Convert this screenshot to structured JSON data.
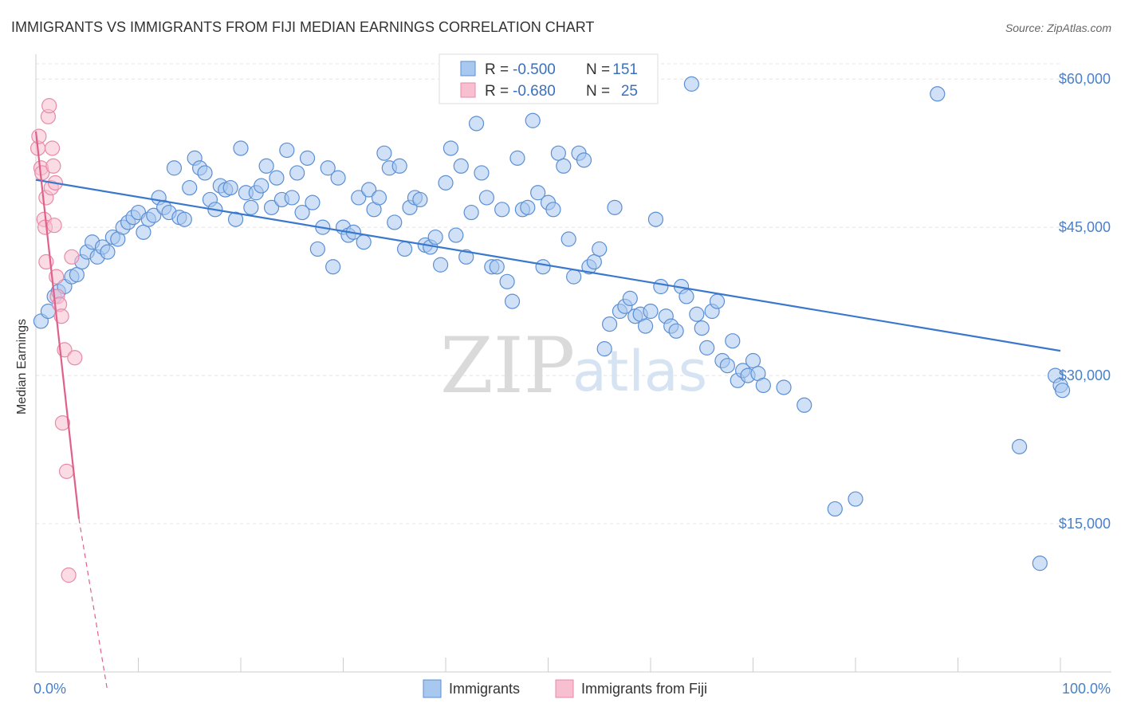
{
  "chart_data": {
    "type": "scatter",
    "title": "IMMIGRANTS VS IMMIGRANTS FROM FIJI MEDIAN EARNINGS CORRELATION CHART",
    "source": "Source: ZipAtlas.com",
    "watermark": {
      "zip": "ZIP",
      "atlas": "atlas"
    },
    "ylabel": "Median Earnings",
    "xlim": [
      0,
      100
    ],
    "ylim": [
      0,
      63000
    ],
    "x_tick_labels": [
      "0.0%",
      "100.0%"
    ],
    "y_ticks": [
      {
        "value": 15000,
        "label": "$15,000"
      },
      {
        "value": 30000,
        "label": "$30,000"
      },
      {
        "value": 45000,
        "label": "$45,000"
      },
      {
        "value": 60000,
        "label": "$60,000"
      }
    ],
    "grid": true,
    "legend": {
      "placement": "top-center",
      "rows": [
        {
          "r_label": "R =",
          "r_value": "-0.500",
          "n_label": "N =",
          "n_value": "151",
          "color": "#a9c8f0",
          "stroke": "#5b8fd4"
        },
        {
          "r_label": "R =",
          "r_value": "-0.680",
          "n_label": "N =",
          "n_value": "25",
          "color": "#f7bfd0",
          "stroke": "#e88aa8"
        }
      ]
    },
    "series": [
      {
        "name": "Immigrants",
        "color": "#a9c8f0",
        "stroke": "#5b8fd4",
        "line_color": "#3a78cc",
        "trend": {
          "x0": 0,
          "y0": 49800,
          "x1": 100,
          "y1": 32500
        },
        "points": [
          [
            0.5,
            35500
          ],
          [
            1.2,
            36500
          ],
          [
            1.8,
            38000
          ],
          [
            2.2,
            38500
          ],
          [
            2.8,
            39000
          ],
          [
            3.5,
            40000
          ],
          [
            4,
            40200
          ],
          [
            4.5,
            41500
          ],
          [
            5,
            42500
          ],
          [
            5.5,
            43500
          ],
          [
            6,
            42000
          ],
          [
            6.5,
            43000
          ],
          [
            7,
            42500
          ],
          [
            7.5,
            44000
          ],
          [
            8,
            43800
          ],
          [
            8.5,
            45000
          ],
          [
            9,
            45500
          ],
          [
            9.5,
            46000
          ],
          [
            10,
            46500
          ],
          [
            10.5,
            44500
          ],
          [
            11,
            45800
          ],
          [
            11.5,
            46200
          ],
          [
            12,
            48000
          ],
          [
            12.5,
            47000
          ],
          [
            13,
            46500
          ],
          [
            13.5,
            51000
          ],
          [
            14,
            46000
          ],
          [
            14.5,
            45800
          ],
          [
            15,
            49000
          ],
          [
            15.5,
            52000
          ],
          [
            16,
            51000
          ],
          [
            16.5,
            50500
          ],
          [
            17,
            47800
          ],
          [
            17.5,
            46800
          ],
          [
            18,
            49200
          ],
          [
            18.5,
            48800
          ],
          [
            19,
            49000
          ],
          [
            19.5,
            45800
          ],
          [
            20,
            53000
          ],
          [
            20.5,
            48500
          ],
          [
            21,
            47000
          ],
          [
            21.5,
            48500
          ],
          [
            22,
            49200
          ],
          [
            22.5,
            51200
          ],
          [
            23,
            47000
          ],
          [
            23.5,
            50000
          ],
          [
            24,
            47800
          ],
          [
            24.5,
            52800
          ],
          [
            25,
            48000
          ],
          [
            25.5,
            50500
          ],
          [
            26,
            46500
          ],
          [
            26.5,
            52000
          ],
          [
            27,
            47500
          ],
          [
            27.5,
            42800
          ],
          [
            28,
            45000
          ],
          [
            28.5,
            51000
          ],
          [
            29,
            41000
          ],
          [
            29.5,
            50000
          ],
          [
            30,
            45000
          ],
          [
            30.5,
            44200
          ],
          [
            31,
            44500
          ],
          [
            31.5,
            48000
          ],
          [
            32,
            43500
          ],
          [
            32.5,
            48800
          ],
          [
            33,
            46800
          ],
          [
            33.5,
            48000
          ],
          [
            34,
            52500
          ],
          [
            34.5,
            51000
          ],
          [
            35,
            45500
          ],
          [
            35.5,
            51200
          ],
          [
            36,
            42800
          ],
          [
            36.5,
            47000
          ],
          [
            37,
            48000
          ],
          [
            37.5,
            47800
          ],
          [
            38,
            43200
          ],
          [
            38.5,
            43000
          ],
          [
            39,
            44000
          ],
          [
            39.5,
            41200
          ],
          [
            40,
            49500
          ],
          [
            40.5,
            53000
          ],
          [
            41,
            44200
          ],
          [
            41.5,
            51200
          ],
          [
            42,
            42000
          ],
          [
            42.5,
            46500
          ],
          [
            43,
            55500
          ],
          [
            43.5,
            50500
          ],
          [
            44,
            48000
          ],
          [
            44.5,
            41000
          ],
          [
            45,
            41000
          ],
          [
            45.5,
            46800
          ],
          [
            46,
            39500
          ],
          [
            46.5,
            37500
          ],
          [
            47,
            52000
          ],
          [
            47.5,
            46800
          ],
          [
            48,
            47000
          ],
          [
            48.5,
            55800
          ],
          [
            49,
            48500
          ],
          [
            49.5,
            41000
          ],
          [
            50,
            47500
          ],
          [
            50.5,
            46800
          ],
          [
            51,
            52500
          ],
          [
            51.5,
            51200
          ],
          [
            52,
            43800
          ],
          [
            52.5,
            40000
          ],
          [
            53,
            52500
          ],
          [
            53.5,
            51800
          ],
          [
            54,
            41000
          ],
          [
            54.5,
            41500
          ],
          [
            55,
            42800
          ],
          [
            55.5,
            32700
          ],
          [
            56,
            35200
          ],
          [
            56.5,
            47000
          ],
          [
            57,
            36500
          ],
          [
            57.5,
            37000
          ],
          [
            58,
            37800
          ],
          [
            58.5,
            36000
          ],
          [
            59,
            36200
          ],
          [
            59.5,
            35000
          ],
          [
            60,
            36500
          ],
          [
            60.5,
            45800
          ],
          [
            61,
            39000
          ],
          [
            61.5,
            36000
          ],
          [
            62,
            35000
          ],
          [
            62.5,
            34500
          ],
          [
            63,
            39000
          ],
          [
            63.5,
            38000
          ],
          [
            64,
            59500
          ],
          [
            64.5,
            36200
          ],
          [
            65,
            34800
          ],
          [
            65.5,
            32800
          ],
          [
            66,
            36500
          ],
          [
            66.5,
            37500
          ],
          [
            67,
            31500
          ],
          [
            67.5,
            31000
          ],
          [
            68,
            33500
          ],
          [
            68.5,
            29500
          ],
          [
            69,
            30500
          ],
          [
            69.5,
            30000
          ],
          [
            70,
            31500
          ],
          [
            70.5,
            30200
          ],
          [
            71,
            29000
          ],
          [
            73,
            28800
          ],
          [
            75,
            27000
          ],
          [
            78,
            16500
          ],
          [
            80,
            17500
          ],
          [
            88,
            58500
          ],
          [
            96,
            22800
          ],
          [
            98,
            11000
          ],
          [
            99.5,
            30000
          ],
          [
            100,
            29000
          ],
          [
            100.2,
            28500
          ]
        ]
      },
      {
        "name": "Immigrants from Fiji",
        "color": "#f7bfd0",
        "stroke": "#e88aa8",
        "line_color": "#e0608a",
        "trend": {
          "x0": 0,
          "y0": 54700,
          "x1": 4.2,
          "y1": 15500
        },
        "trend_dashed": {
          "x0": 4.2,
          "y0": 15500,
          "x1": 7,
          "y1": -2000
        },
        "points": [
          [
            0.2,
            53000
          ],
          [
            0.3,
            54200
          ],
          [
            0.5,
            51000
          ],
          [
            0.6,
            50500
          ],
          [
            0.8,
            45800
          ],
          [
            0.9,
            45000
          ],
          [
            1,
            48000
          ],
          [
            1.2,
            56200
          ],
          [
            1.3,
            57300
          ],
          [
            1.5,
            49000
          ],
          [
            1.6,
            53000
          ],
          [
            1.7,
            51200
          ],
          [
            1.8,
            45200
          ],
          [
            1.9,
            49500
          ],
          [
            2,
            40000
          ],
          [
            2.1,
            38000
          ],
          [
            2.3,
            37200
          ],
          [
            2.5,
            36000
          ],
          [
            2.6,
            25200
          ],
          [
            2.8,
            32600
          ],
          [
            3,
            20300
          ],
          [
            3.2,
            9800
          ],
          [
            3.5,
            42000
          ],
          [
            3.8,
            31800
          ],
          [
            1.0,
            41500
          ]
        ]
      }
    ]
  },
  "bottom_legend": [
    {
      "label": "Immigrants",
      "color": "#a9c8f0",
      "stroke": "#5b8fd4"
    },
    {
      "label": "Immigrants from Fiji",
      "color": "#f7bfd0",
      "stroke": "#e88aa8"
    }
  ]
}
